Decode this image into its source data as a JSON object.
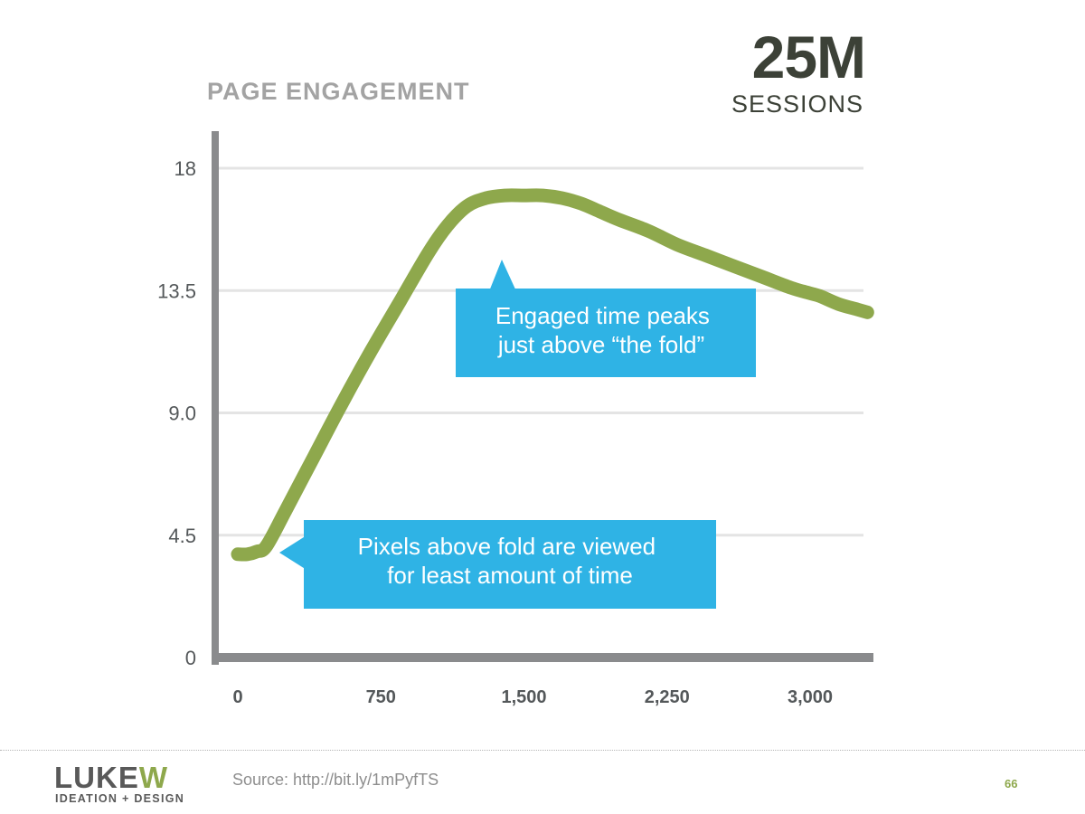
{
  "header": {
    "title": "PAGE ENGAGEMENT",
    "stat_value": "25M",
    "stat_label": "SESSIONS"
  },
  "chart_data": {
    "type": "line",
    "title": "PAGE ENGAGEMENT",
    "xlabel": "",
    "ylabel": "",
    "xlim": [
      0,
      3000
    ],
    "ylim": [
      0,
      18
    ],
    "x_ticks": [
      0,
      750,
      1500,
      2250,
      3000
    ],
    "x_tick_labels": [
      "0",
      "750",
      "1,500",
      "2,250",
      "3,000"
    ],
    "y_ticks": [
      0,
      4.5,
      9,
      13.5,
      18
    ],
    "y_tick_labels": [
      "0",
      "4.5",
      "9.0",
      "13.5",
      "18"
    ],
    "grid": true,
    "line_color": "#8ea84c",
    "callout_color": "#2fb3e5",
    "series": [
      {
        "x": [
          0,
          50,
          100,
          150,
          250,
          400,
          550,
          700,
          850,
          1000,
          1100,
          1200,
          1300,
          1400,
          1500,
          1600,
          1700,
          1800,
          1900,
          2000,
          2150,
          2300,
          2450,
          2600,
          2750,
          2900,
          3000,
          3050,
          3150,
          3250,
          3300
        ],
        "values": [
          3.8,
          3.8,
          3.9,
          4.1,
          5.4,
          7.4,
          9.4,
          11.3,
          13.1,
          14.9,
          15.9,
          16.6,
          16.9,
          17.0,
          17.0,
          17.0,
          16.9,
          16.7,
          16.4,
          16.1,
          15.7,
          15.2,
          14.8,
          14.4,
          14.0,
          13.6,
          13.4,
          13.3,
          13.0,
          12.8,
          12.7
        ]
      }
    ],
    "annotations": [
      {
        "lines": [
          "Engaged time peaks",
          "just above “the fold”"
        ]
      },
      {
        "lines": [
          "Pixels above fold are viewed",
          "for least amount of time"
        ]
      }
    ]
  },
  "footer": {
    "logo_main": "LUKEW",
    "logo_sub": "IDEATION + DESIGN",
    "source": "Source: http://bit.ly/1mPyfTS",
    "page_number": "66"
  }
}
